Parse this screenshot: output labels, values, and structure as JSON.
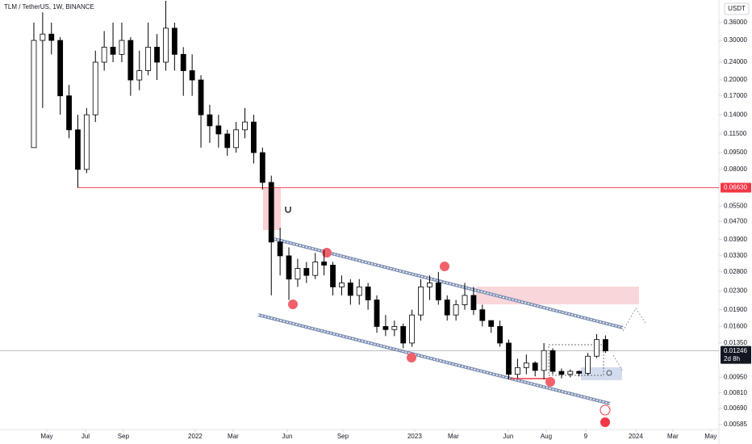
{
  "chart_data": {
    "type": "candlestick",
    "title": "TLM / TetherUS, 1W, BINANCE",
    "y_axis_label": "USDT",
    "log_scale": true,
    "up_color": "#ffffff",
    "down_color": "#000000",
    "open": [
      0.1,
      0.3,
      0.32,
      0.3,
      0.17,
      0.12,
      0.08,
      0.14,
      0.24,
      0.28,
      0.26,
      0.3,
      0.2,
      0.22,
      0.28,
      0.24,
      0.34,
      0.26,
      0.22,
      0.2,
      0.14,
      0.125,
      0.115,
      0.1,
      0.12,
      0.13,
      0.095,
      0.07,
      0.038,
      0.033,
      0.026,
      0.029,
      0.027,
      0.031,
      0.03,
      0.024,
      0.025,
      0.022,
      0.024,
      0.021,
      0.016,
      0.0155,
      0.016,
      0.0135,
      0.018,
      0.024,
      0.025,
      0.021,
      0.018,
      0.02,
      0.022,
      0.019,
      0.017,
      0.016,
      0.0135,
      0.0098,
      0.0105,
      0.011,
      0.0102,
      0.0125,
      0.0101,
      0.0098,
      0.0101,
      0.0099,
      0.0118,
      0.014
    ],
    "high": [
      0.36,
      0.4,
      0.36,
      0.31,
      0.19,
      0.14,
      0.15,
      0.27,
      0.33,
      0.36,
      0.36,
      0.31,
      0.27,
      0.36,
      0.32,
      0.45,
      0.36,
      0.28,
      0.26,
      0.21,
      0.155,
      0.14,
      0.12,
      0.13,
      0.15,
      0.14,
      0.1,
      0.075,
      0.044,
      0.036,
      0.032,
      0.031,
      0.034,
      0.035,
      0.031,
      0.027,
      0.026,
      0.026,
      0.025,
      0.022,
      0.018,
      0.017,
      0.0165,
      0.019,
      0.026,
      0.027,
      0.028,
      0.022,
      0.021,
      0.025,
      0.024,
      0.02,
      0.017,
      0.017,
      0.014,
      0.0115,
      0.012,
      0.0112,
      0.0135,
      0.0128,
      0.0104,
      0.0103,
      0.0102,
      0.0122,
      0.0148,
      0.0146
    ],
    "low": [
      0.1,
      0.15,
      0.26,
      0.14,
      0.11,
      0.0663,
      0.077,
      0.13,
      0.22,
      0.24,
      0.24,
      0.17,
      0.18,
      0.21,
      0.2,
      0.22,
      0.22,
      0.17,
      0.17,
      0.1,
      0.105,
      0.1,
      0.092,
      0.095,
      0.11,
      0.085,
      0.065,
      0.022,
      0.027,
      0.021,
      0.024,
      0.025,
      0.026,
      0.027,
      0.022,
      0.022,
      0.02,
      0.02,
      0.019,
      0.015,
      0.0145,
      0.0145,
      0.0128,
      0.013,
      0.017,
      0.021,
      0.02,
      0.017,
      0.017,
      0.019,
      0.018,
      0.016,
      0.015,
      0.013,
      0.0093,
      0.0094,
      0.0098,
      0.0096,
      0.0093,
      0.0098,
      0.0094,
      0.0095,
      0.0096,
      0.0097,
      0.0116,
      0.0122
    ],
    "close": [
      0.3,
      0.32,
      0.3,
      0.17,
      0.12,
      0.08,
      0.14,
      0.24,
      0.28,
      0.26,
      0.3,
      0.2,
      0.22,
      0.28,
      0.24,
      0.34,
      0.26,
      0.22,
      0.2,
      0.14,
      0.125,
      0.115,
      0.1,
      0.12,
      0.13,
      0.095,
      0.07,
      0.038,
      0.033,
      0.026,
      0.029,
      0.027,
      0.031,
      0.03,
      0.024,
      0.025,
      0.022,
      0.024,
      0.021,
      0.016,
      0.0155,
      0.016,
      0.0135,
      0.018,
      0.024,
      0.025,
      0.021,
      0.018,
      0.02,
      0.022,
      0.019,
      0.017,
      0.016,
      0.0135,
      0.0098,
      0.0105,
      0.011,
      0.0102,
      0.0125,
      0.0101,
      0.0098,
      0.0101,
      0.0099,
      0.0118,
      0.014,
      0.01246
    ],
    "xlim": [
      -3.85,
      77.9
    ],
    "xticks": [
      {
        "value": 1.47,
        "label": "May"
      },
      {
        "value": 5.87,
        "label": "Jul"
      },
      {
        "value": 10.18,
        "label": "Sep"
      },
      {
        "value": 18.35,
        "label": "2022"
      },
      {
        "value": 22.66,
        "label": "Mar"
      },
      {
        "value": 28.81,
        "label": "Jun"
      },
      {
        "value": 35.14,
        "label": "Sep"
      },
      {
        "value": 43.3,
        "label": "2023"
      },
      {
        "value": 47.7,
        "label": "Mar"
      },
      {
        "value": 53.94,
        "label": "Jun"
      },
      {
        "value": 58.26,
        "label": "Aug"
      },
      {
        "value": 62.75,
        "label": "9"
      },
      {
        "value": 68.44,
        "label": "2024"
      },
      {
        "value": 72.66,
        "label": "Mar"
      },
      {
        "value": 76.97,
        "label": "May"
      }
    ],
    "ylim": [
      0.00557,
      0.4538
    ],
    "yticks": [
      {
        "value": 0.36,
        "label": "0.36000"
      },
      {
        "value": 0.3,
        "label": "0.30000"
      },
      {
        "value": 0.24,
        "label": "0.24000"
      },
      {
        "value": 0.2,
        "label": "0.20000"
      },
      {
        "value": 0.17,
        "label": "0.17000"
      },
      {
        "value": 0.14,
        "label": "0.14000"
      },
      {
        "value": 0.115,
        "label": "0.11500"
      },
      {
        "value": 0.095,
        "label": "0.09500"
      },
      {
        "value": 0.08,
        "label": "0.08000"
      },
      {
        "value": 0.055,
        "label": "0.05500"
      },
      {
        "value": 0.047,
        "label": "0.04700"
      },
      {
        "value": 0.039,
        "label": "0.03900"
      },
      {
        "value": 0.033,
        "label": "0.03300"
      },
      {
        "value": 0.028,
        "label": "0.02800"
      },
      {
        "value": 0.023,
        "label": "0.02300"
      },
      {
        "value": 0.019,
        "label": "0.01900"
      },
      {
        "value": 0.016,
        "label": "0.01600"
      },
      {
        "value": 0.0135,
        "label": "0.01350"
      },
      {
        "value": 0.0095,
        "label": "0.00950"
      },
      {
        "value": 0.0081,
        "label": "0.00810"
      },
      {
        "value": 0.0069,
        "label": "0.00690"
      },
      {
        "value": 0.00585,
        "label": "0.00585"
      }
    ],
    "price_line": {
      "value": 0.0663,
      "label": "0.06630",
      "color": "#f23645"
    },
    "last_price": {
      "value": 0.01246,
      "countdown": "2d 8h"
    }
  }
}
